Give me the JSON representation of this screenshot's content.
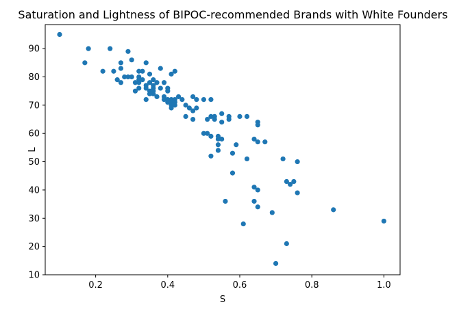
{
  "chart_data": {
    "type": "scatter",
    "title": "Saturation and Lightness of BIPOC-recommended Brands with White Founders",
    "xlabel": "S",
    "ylabel": "L",
    "xlim": [
      0.06,
      1.045
    ],
    "ylim": [
      10,
      98.5
    ],
    "xticks": [
      0.2,
      0.4,
      0.6,
      0.8,
      1.0
    ],
    "xtick_labels": [
      "0.2",
      "0.4",
      "0.6",
      "0.8",
      "1.0"
    ],
    "yticks": [
      10,
      20,
      30,
      40,
      50,
      60,
      70,
      80,
      90
    ],
    "ytick_labels": [
      "10",
      "20",
      "30",
      "40",
      "50",
      "60",
      "70",
      "80",
      "90"
    ],
    "grid": false,
    "marker_color": "#1f77b4",
    "points": [
      [
        0.1,
        95
      ],
      [
        0.17,
        85
      ],
      [
        0.18,
        90
      ],
      [
        0.22,
        82
      ],
      [
        0.24,
        90
      ],
      [
        0.25,
        82
      ],
      [
        0.26,
        79
      ],
      [
        0.27,
        78
      ],
      [
        0.27,
        83
      ],
      [
        0.27,
        85
      ],
      [
        0.28,
        80
      ],
      [
        0.29,
        89
      ],
      [
        0.29,
        80
      ],
      [
        0.3,
        86
      ],
      [
        0.3,
        80
      ],
      [
        0.31,
        75
      ],
      [
        0.31,
        78
      ],
      [
        0.32,
        82
      ],
      [
        0.32,
        80
      ],
      [
        0.32,
        79
      ],
      [
        0.32,
        78
      ],
      [
        0.32,
        76
      ],
      [
        0.33,
        82
      ],
      [
        0.33,
        79
      ],
      [
        0.34,
        85
      ],
      [
        0.34,
        77
      ],
      [
        0.34,
        76
      ],
      [
        0.34,
        72
      ],
      [
        0.35,
        81
      ],
      [
        0.35,
        78
      ],
      [
        0.35,
        75
      ],
      [
        0.35,
        74
      ],
      [
        0.36,
        79
      ],
      [
        0.36,
        77
      ],
      [
        0.36,
        76
      ],
      [
        0.36,
        75
      ],
      [
        0.36,
        74
      ],
      [
        0.37,
        78
      ],
      [
        0.37,
        73
      ],
      [
        0.38,
        83
      ],
      [
        0.38,
        76
      ],
      [
        0.39,
        78
      ],
      [
        0.39,
        73
      ],
      [
        0.39,
        72
      ],
      [
        0.4,
        76
      ],
      [
        0.4,
        75
      ],
      [
        0.4,
        72
      ],
      [
        0.4,
        71
      ],
      [
        0.41,
        81
      ],
      [
        0.41,
        72
      ],
      [
        0.41,
        71
      ],
      [
        0.41,
        70
      ],
      [
        0.41,
        69
      ],
      [
        0.42,
        82
      ],
      [
        0.42,
        72
      ],
      [
        0.42,
        71
      ],
      [
        0.42,
        70
      ],
      [
        0.43,
        73
      ],
      [
        0.44,
        72
      ],
      [
        0.45,
        70
      ],
      [
        0.45,
        66
      ],
      [
        0.46,
        69
      ],
      [
        0.47,
        73
      ],
      [
        0.47,
        68
      ],
      [
        0.47,
        65
      ],
      [
        0.48,
        72
      ],
      [
        0.48,
        69
      ],
      [
        0.5,
        72
      ],
      [
        0.5,
        60
      ],
      [
        0.51,
        65
      ],
      [
        0.51,
        60
      ],
      [
        0.52,
        72
      ],
      [
        0.52,
        66
      ],
      [
        0.52,
        59
      ],
      [
        0.52,
        52
      ],
      [
        0.53,
        66
      ],
      [
        0.53,
        65
      ],
      [
        0.54,
        59
      ],
      [
        0.54,
        58
      ],
      [
        0.54,
        56
      ],
      [
        0.54,
        54
      ],
      [
        0.55,
        67
      ],
      [
        0.55,
        64
      ],
      [
        0.55,
        58
      ],
      [
        0.56,
        36
      ],
      [
        0.57,
        66
      ],
      [
        0.57,
        65
      ],
      [
        0.58,
        53
      ],
      [
        0.58,
        46
      ],
      [
        0.59,
        56
      ],
      [
        0.6,
        66
      ],
      [
        0.61,
        28
      ],
      [
        0.62,
        66
      ],
      [
        0.62,
        51
      ],
      [
        0.64,
        58
      ],
      [
        0.64,
        41
      ],
      [
        0.64,
        36
      ],
      [
        0.65,
        64
      ],
      [
        0.65,
        63
      ],
      [
        0.65,
        57
      ],
      [
        0.65,
        40
      ],
      [
        0.65,
        34
      ],
      [
        0.67,
        57
      ],
      [
        0.69,
        32
      ],
      [
        0.7,
        14
      ],
      [
        0.72,
        51
      ],
      [
        0.73,
        43
      ],
      [
        0.73,
        21
      ],
      [
        0.74,
        42
      ],
      [
        0.75,
        43
      ],
      [
        0.76,
        50
      ],
      [
        0.76,
        39
      ],
      [
        0.86,
        33
      ],
      [
        1.0,
        29
      ]
    ]
  }
}
